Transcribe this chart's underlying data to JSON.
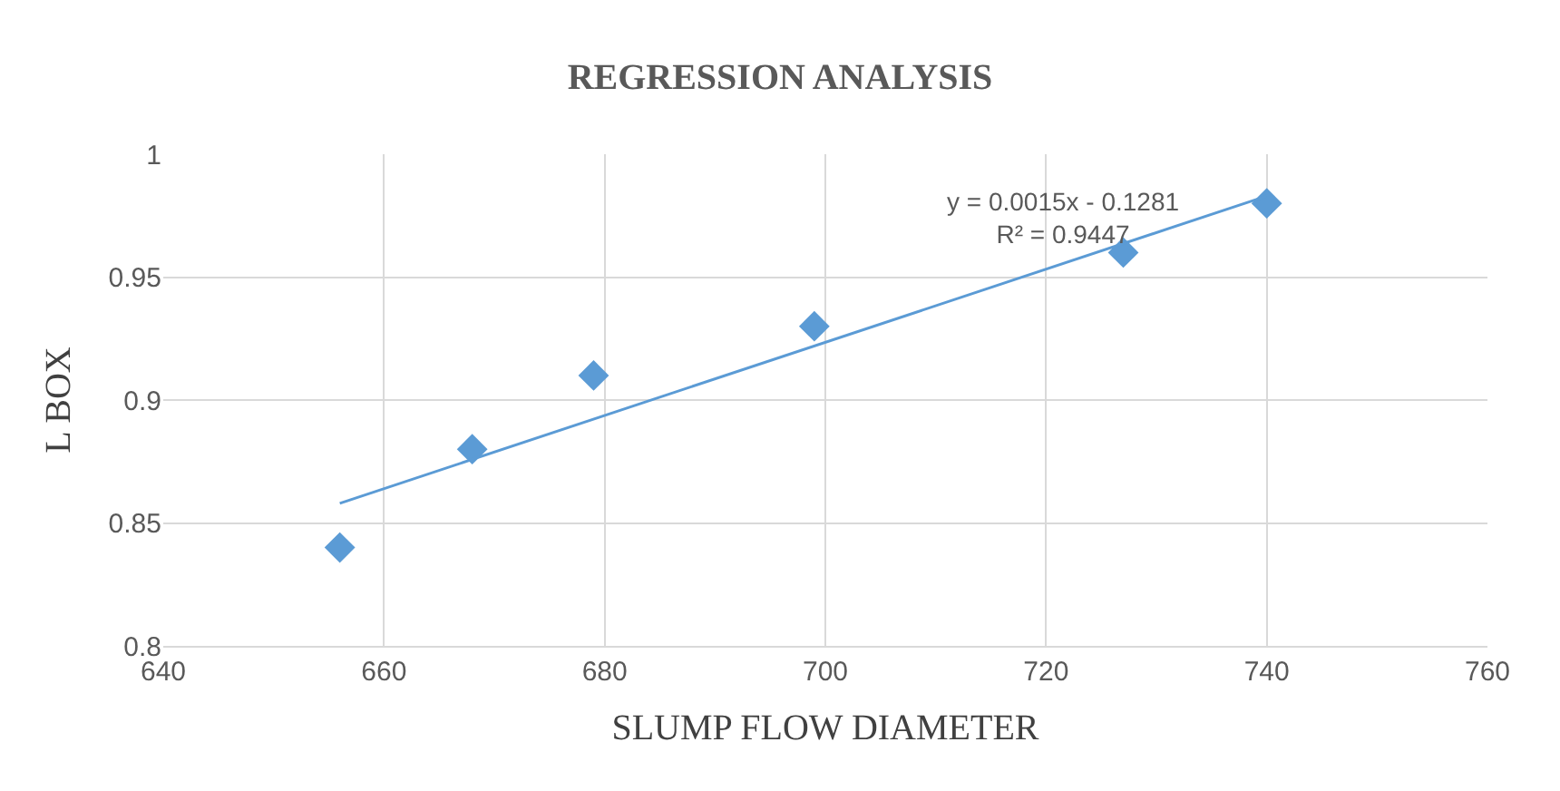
{
  "chart_data": {
    "type": "scatter",
    "title": "REGRESSION ANALYSIS",
    "xlabel": "SLUMP FLOW DIAMETER",
    "ylabel": "L BOX",
    "series": [
      {
        "color": "#5b9bd5",
        "marker": "diamond",
        "x": [
          656,
          668,
          679,
          699,
          727,
          740
        ],
        "values": [
          0.84,
          0.88,
          0.91,
          0.93,
          0.96,
          0.98
        ]
      },
      {
        "type": "line",
        "color": "#5b9bd5",
        "marker": "none",
        "line_style": "solid",
        "x": [
          656,
          740
        ],
        "values": [
          0.858,
          0.983
        ]
      }
    ],
    "annotations": [
      "y = 0.0015x - 0.1281\nR² = 0.9447"
    ],
    "xlim": [
      640,
      760
    ],
    "xticks": [
      640,
      660,
      680,
      700,
      720,
      740,
      760
    ],
    "ylim": [
      0.8,
      1
    ],
    "yticks": [
      0.8,
      0.85,
      0.9,
      0.95,
      1
    ],
    "grid": true
  }
}
